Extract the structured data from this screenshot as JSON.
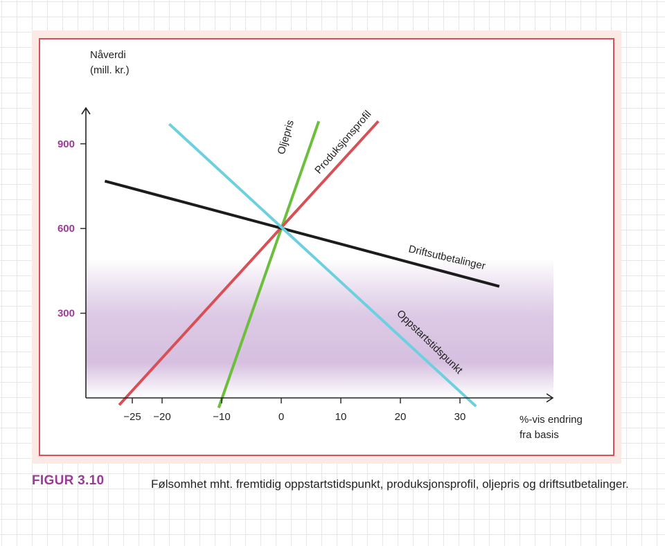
{
  "chart_data": {
    "type": "line",
    "ylabel_lines": [
      "Nåverdi",
      "(mill. kr.)"
    ],
    "xlabel_lines": [
      "%-vis endring",
      "fra basis"
    ],
    "x_ticks": [
      -25,
      -20,
      -10,
      0,
      10,
      20,
      30
    ],
    "x_tick_labels": [
      "−25",
      "−20",
      "−10",
      "0",
      "10",
      "20",
      "30"
    ],
    "y_ticks": [
      300,
      600,
      900
    ],
    "y_tick_labels": [
      "300",
      "600",
      "900"
    ],
    "xlim": [
      -33,
      46
    ],
    "ylim": [
      0,
      1000
    ],
    "grid": false,
    "series": [
      {
        "name": "Oljepris",
        "color": "#6bbf3c",
        "x": [
          -10.5,
          6.3
        ],
        "y": [
          -35,
          980
        ]
      },
      {
        "name": "Produksjonsprofil",
        "color": "#d84f55",
        "x": [
          -27.2,
          16.3
        ],
        "y": [
          -25,
          980
        ]
      },
      {
        "name": "Driftsutbetalinger",
        "color": "#1c1c1c",
        "x": [
          -29.6,
          36.6
        ],
        "y": [
          768,
          395
        ]
      },
      {
        "name": "Oppstartstidspunkt",
        "color": "#6cd0df",
        "x": [
          -18.8,
          32.7
        ],
        "y": [
          970,
          -30
        ]
      }
    ],
    "shade_color": "#d6bfe0",
    "tick_color": "#9b3b97"
  },
  "caption": {
    "figure_number": "FIGUR 3.10",
    "text": "Følsomhet mht. fremtidig oppstartstidspunkt, produksjonsprofil, oljepris og driftsutbetalinger."
  }
}
